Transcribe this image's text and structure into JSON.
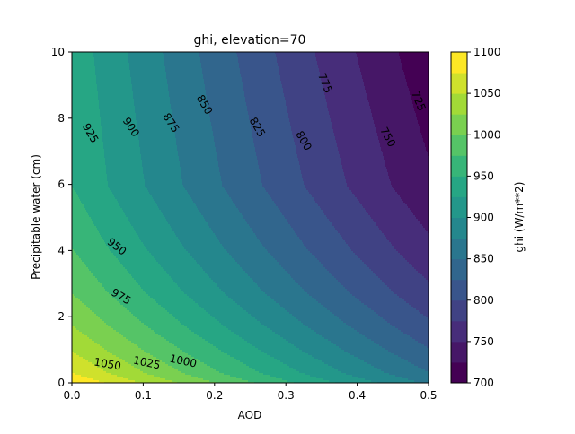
{
  "chart_data": {
    "type": "contour",
    "title": "ghi, elevation=70",
    "xlabel": "AOD",
    "ylabel": "Precipitable water (cm)",
    "xlim": [
      0,
      0.5
    ],
    "ylim": [
      0,
      10
    ],
    "xticks": [
      "0.0",
      "0.1",
      "0.2",
      "0.3",
      "0.4",
      "0.5"
    ],
    "yticks": [
      "0",
      "2",
      "4",
      "6",
      "8",
      "10"
    ],
    "colormap": "viridis",
    "levels": [
      700,
      725,
      750,
      775,
      800,
      825,
      850,
      875,
      900,
      925,
      950,
      975,
      1000,
      1025,
      1050,
      1075,
      1100
    ],
    "colorbar": {
      "label": "ghi (W/m**2)",
      "ticks": [
        "700",
        "750",
        "800",
        "850",
        "900",
        "950",
        "1000",
        "1050",
        "1100"
      ]
    },
    "surface": {
      "pw_at_aod0": [
        0,
        0.3,
        0.95,
        1.73,
        2.71,
        4.07,
        5.96,
        10
      ],
      "ghi_at_aod0": [
        1098,
        1075,
        1050,
        1025,
        1000,
        975,
        950,
        941
      ],
      "decay_rate_at_pw0": 0.465,
      "decay_rate_at_pw10": 0.57
    },
    "contour_labels": [
      {
        "text": "925",
        "aod": 0.026,
        "pw": 7.55,
        "rot": 60
      },
      {
        "text": "900",
        "aod": 0.083,
        "pw": 7.73,
        "rot": 57
      },
      {
        "text": "875",
        "aod": 0.139,
        "pw": 7.86,
        "rot": 57
      },
      {
        "text": "850",
        "aod": 0.186,
        "pw": 8.41,
        "rot": 60
      },
      {
        "text": "825",
        "aod": 0.26,
        "pw": 7.73,
        "rot": 60
      },
      {
        "text": "800",
        "aod": 0.325,
        "pw": 7.32,
        "rot": 60
      },
      {
        "text": "775",
        "aod": 0.355,
        "pw": 9.06,
        "rot": 68
      },
      {
        "text": "750",
        "aod": 0.443,
        "pw": 7.43,
        "rot": 62
      },
      {
        "text": "725",
        "aod": 0.486,
        "pw": 8.52,
        "rot": 68
      },
      {
        "text": "950",
        "aod": 0.063,
        "pw": 4.12,
        "rot": 38
      },
      {
        "text": "975",
        "aod": 0.069,
        "pw": 2.61,
        "rot": 30
      },
      {
        "text": "1000",
        "aod": 0.156,
        "pw": 0.66,
        "rot": 12
      },
      {
        "text": "1025",
        "aod": 0.105,
        "pw": 0.61,
        "rot": 12
      },
      {
        "text": "1050",
        "aod": 0.05,
        "pw": 0.57,
        "rot": 10
      }
    ]
  }
}
